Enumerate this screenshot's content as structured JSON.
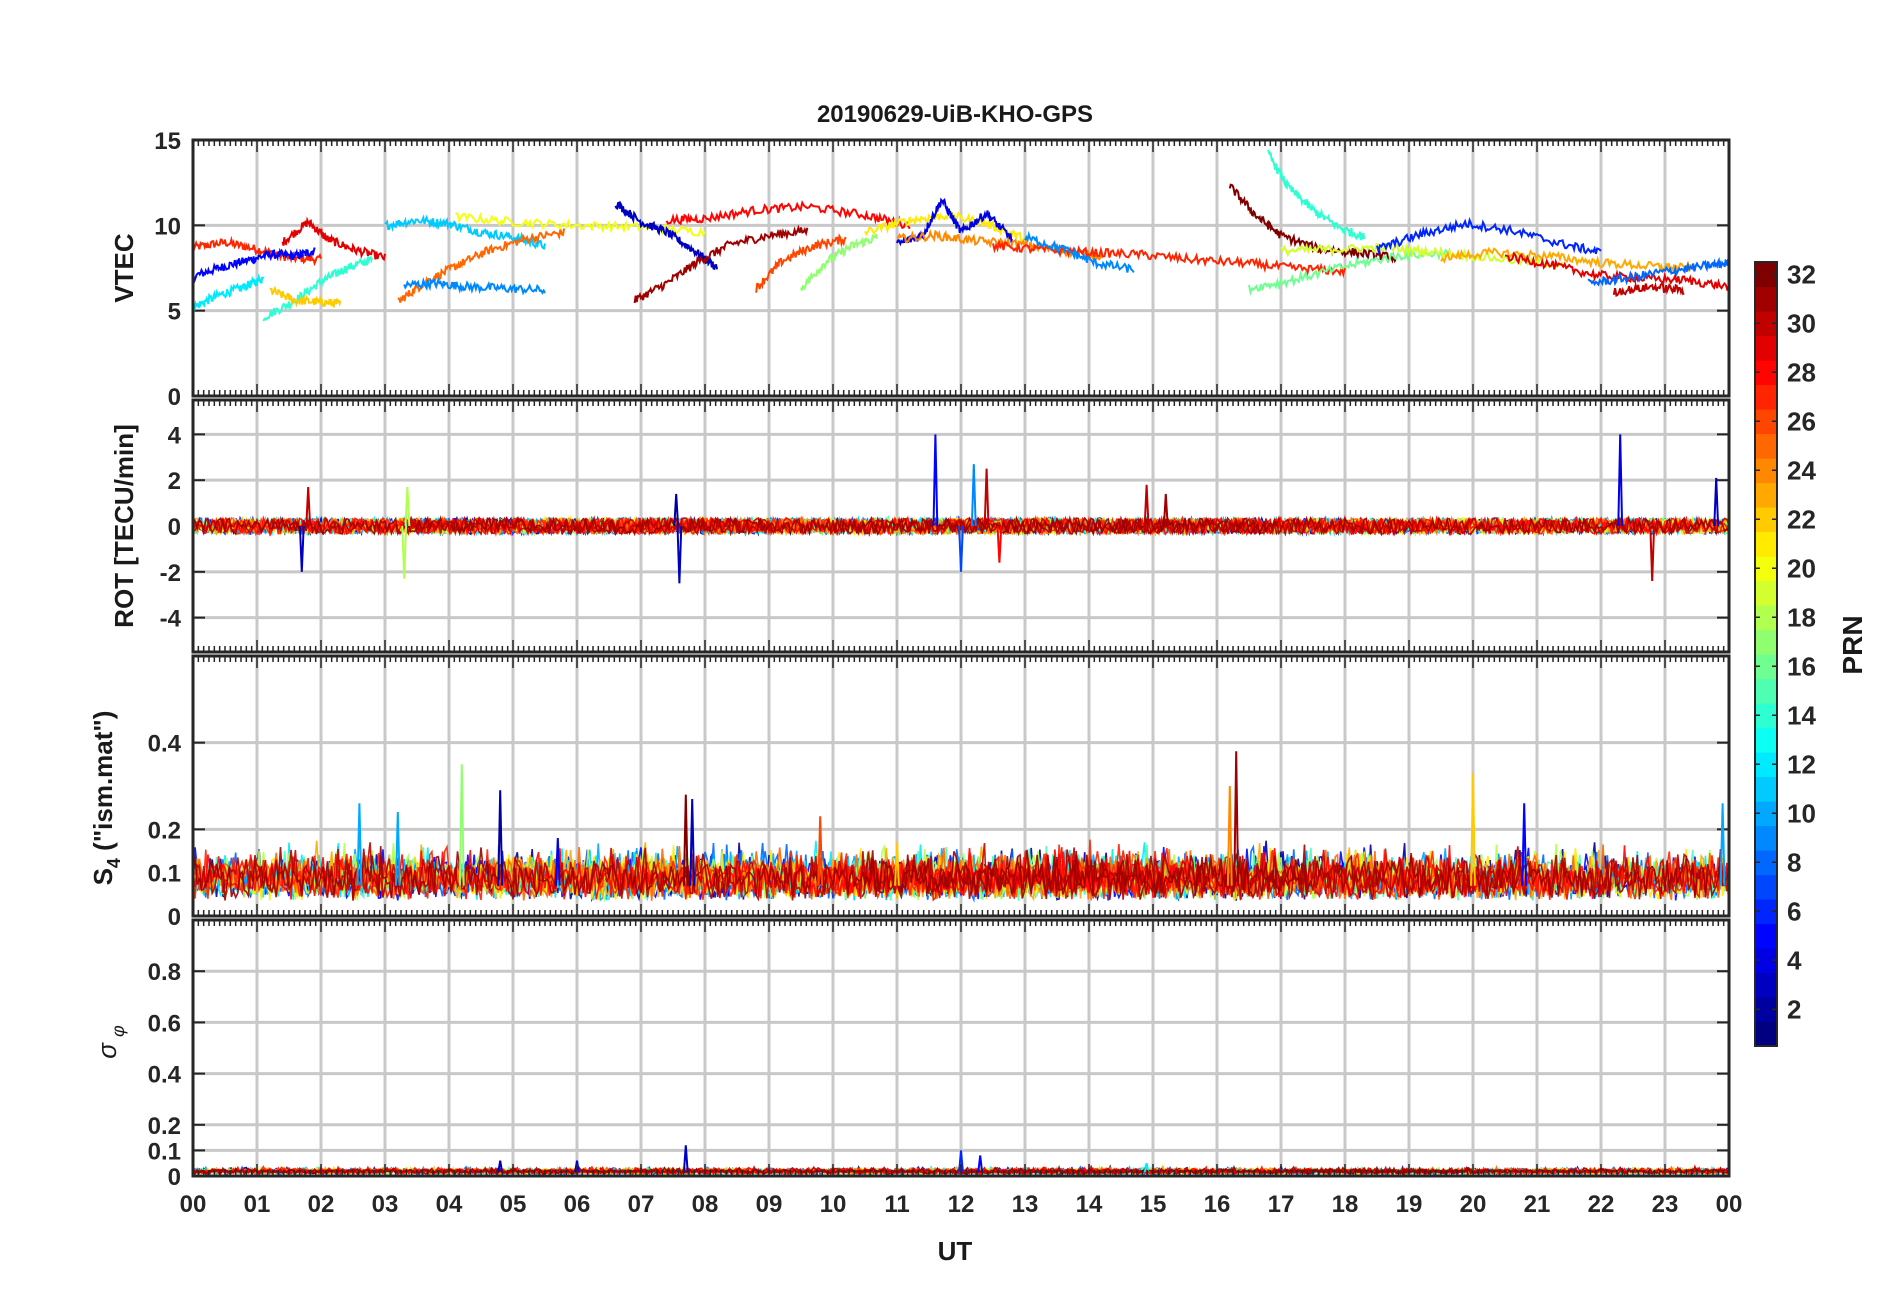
{
  "chart_data": [
    {
      "type": "line",
      "title": "20190629-UiB-KHO-GPS",
      "ylabel": "VTEC",
      "ylim": [
        0,
        15
      ],
      "yticks": [
        0,
        5,
        10,
        15
      ],
      "xlabel": "",
      "xlim": [
        0,
        24
      ],
      "grid": true,
      "series_color_by": "PRN",
      "series": [
        {
          "x": [
            0.0,
            0.5,
            1.0,
            1.5,
            2.0
          ],
          "y": [
            8.7,
            9.0,
            8.6,
            8.1,
            8.0
          ],
          "prn": 27
        },
        {
          "x": [
            0.0,
            0.4,
            0.8,
            1.2,
            1.6,
            1.9
          ],
          "y": [
            7.0,
            7.5,
            7.9,
            8.3,
            8.2,
            8.5
          ],
          "prn": 5
        },
        {
          "x": [
            0.0,
            0.4,
            0.8,
            1.1
          ],
          "y": [
            5.2,
            5.9,
            6.4,
            6.9
          ],
          "prn": 12
        },
        {
          "x": [
            1.1,
            1.6,
            2.0,
            2.4,
            2.8
          ],
          "y": [
            4.6,
            5.6,
            6.7,
            7.5,
            8.0
          ],
          "prn": 14
        },
        {
          "x": [
            1.4,
            1.8,
            2.1,
            2.5,
            3.0
          ],
          "y": [
            9.0,
            10.2,
            9.2,
            8.6,
            8.1
          ],
          "prn": 29
        },
        {
          "x": [
            1.2,
            1.6,
            2.0,
            2.3
          ],
          "y": [
            6.2,
            5.6,
            5.5,
            5.4
          ],
          "prn": 22
        },
        {
          "x": [
            3.0,
            3.5,
            4.0,
            4.5,
            5.0,
            5.5
          ],
          "y": [
            10.0,
            10.3,
            10.1,
            9.6,
            9.3,
            8.8
          ],
          "prn": 11
        },
        {
          "x": [
            3.2,
            3.6,
            4.1,
            4.6,
            5.2,
            5.8
          ],
          "y": [
            5.5,
            6.6,
            7.6,
            8.5,
            9.2,
            9.6
          ],
          "prn": 25
        },
        {
          "x": [
            3.3,
            3.8,
            4.3,
            4.9,
            5.5
          ],
          "y": [
            6.5,
            6.6,
            6.4,
            6.3,
            6.2
          ],
          "prn": 9
        },
        {
          "x": [
            4.1,
            5.0,
            6.0,
            7.0,
            8.0
          ],
          "y": [
            10.5,
            10.2,
            10.0,
            9.9,
            9.6
          ],
          "prn": 20
        },
        {
          "x": [
            6.6,
            7.0,
            7.4,
            7.8,
            8.2
          ],
          "y": [
            11.3,
            10.2,
            9.6,
            8.6,
            7.5
          ],
          "prn": 3
        },
        {
          "x": [
            6.9,
            7.4,
            7.9,
            8.4,
            9.0,
            9.6
          ],
          "y": [
            5.6,
            6.6,
            7.9,
            8.9,
            9.4,
            9.7
          ],
          "prn": 31
        },
        {
          "x": [
            7.4,
            8.0,
            8.8,
            9.6,
            10.5,
            11.2
          ],
          "y": [
            10.3,
            10.4,
            10.9,
            11.1,
            10.6,
            10.0
          ],
          "prn": 28
        },
        {
          "x": [
            8.8,
            9.2,
            9.7,
            10.2
          ],
          "y": [
            6.3,
            7.9,
            8.8,
            9.2
          ],
          "prn": 26
        },
        {
          "x": [
            9.5,
            9.9,
            10.3,
            10.7
          ],
          "y": [
            6.3,
            7.9,
            8.8,
            9.3
          ],
          "prn": 17
        },
        {
          "x": [
            10.5,
            11.2,
            11.8,
            12.4,
            13.0
          ],
          "y": [
            9.6,
            10.3,
            10.6,
            10.1,
            9.2
          ],
          "prn": 21
        },
        {
          "x": [
            11.0,
            11.4,
            11.7,
            12.0,
            12.4,
            12.8
          ],
          "y": [
            8.9,
            9.4,
            11.5,
            9.6,
            10.7,
            9.2
          ],
          "prn": 4
        },
        {
          "x": [
            11.0,
            11.6,
            12.2,
            12.9,
            13.6,
            14.2
          ],
          "y": [
            9.2,
            9.4,
            9.1,
            8.9,
            8.5,
            8.2
          ],
          "prn": 24
        },
        {
          "x": [
            12.5,
            13.2,
            14.0,
            14.8,
            15.6,
            16.4,
            17.2,
            18.0
          ],
          "y": [
            8.8,
            8.6,
            8.4,
            8.3,
            8.0,
            7.8,
            7.5,
            7.3
          ],
          "prn": 27
        },
        {
          "x": [
            13.0,
            13.6,
            14.1,
            14.7
          ],
          "y": [
            9.3,
            8.6,
            7.8,
            7.4
          ],
          "prn": 9
        },
        {
          "x": [
            16.2,
            16.6,
            17.0,
            17.6,
            18.2,
            18.8
          ],
          "y": [
            12.3,
            10.6,
            9.4,
            8.6,
            8.4,
            8.1
          ],
          "prn": 32
        },
        {
          "x": [
            16.8,
            17.1,
            17.5,
            17.9,
            18.3
          ],
          "y": [
            14.2,
            12.3,
            10.9,
            9.9,
            9.3
          ],
          "prn": 14
        },
        {
          "x": [
            16.5,
            17.2,
            18.0,
            18.8,
            19.6
          ],
          "y": [
            6.3,
            6.8,
            7.6,
            8.2,
            8.4
          ],
          "prn": 16
        },
        {
          "x": [
            17.0,
            17.8,
            18.6,
            19.5,
            20.5,
            21.4
          ],
          "y": [
            8.5,
            8.6,
            8.7,
            8.4,
            8.0,
            7.7
          ],
          "prn": 19
        },
        {
          "x": [
            18.5,
            19.2,
            19.9,
            20.6,
            21.4,
            22.0
          ],
          "y": [
            8.6,
            9.5,
            10.1,
            9.7,
            8.9,
            8.4
          ],
          "prn": 6
        },
        {
          "x": [
            19.5,
            20.3,
            21.2,
            22.0,
            22.8,
            23.4
          ],
          "y": [
            8.1,
            8.4,
            8.2,
            7.8,
            7.6,
            7.5
          ],
          "prn": 23
        },
        {
          "x": [
            20.5,
            21.2,
            21.9,
            22.6,
            23.3,
            24.0
          ],
          "y": [
            8.2,
            7.7,
            7.1,
            6.9,
            6.8,
            6.4
          ],
          "prn": 29
        },
        {
          "x": [
            21.8,
            22.4,
            23.0,
            23.6,
            24.0
          ],
          "y": [
            6.6,
            6.9,
            7.3,
            7.6,
            7.8
          ],
          "prn": 8
        },
        {
          "x": [
            22.2,
            22.8,
            23.3
          ],
          "y": [
            6.1,
            6.4,
            6.2
          ],
          "prn": 30
        }
      ]
    },
    {
      "type": "line",
      "ylabel": "ROT [TECU/min]",
      "ylim": [
        -5.5,
        5.5
      ],
      "yticks": [
        -4,
        -2,
        0,
        2,
        4
      ],
      "xlim": [
        0,
        24
      ],
      "grid": true,
      "series_color_by": "PRN",
      "spikes": [
        {
          "x": 1.7,
          "y": -2.0,
          "prn": 3
        },
        {
          "x": 1.8,
          "y": 1.7,
          "prn": 30
        },
        {
          "x": 3.3,
          "y": -2.3,
          "prn": 18
        },
        {
          "x": 3.35,
          "y": 1.7,
          "prn": 18
        },
        {
          "x": 7.6,
          "y": -2.5,
          "prn": 3
        },
        {
          "x": 7.55,
          "y": 1.4,
          "prn": 2
        },
        {
          "x": 11.6,
          "y": 4.0,
          "prn": 5
        },
        {
          "x": 12.0,
          "y": -2.0,
          "prn": 7
        },
        {
          "x": 12.2,
          "y": 2.7,
          "prn": 9
        },
        {
          "x": 12.4,
          "y": 2.5,
          "prn": 30
        },
        {
          "x": 12.6,
          "y": -1.6,
          "prn": 28
        },
        {
          "x": 14.9,
          "y": 1.8,
          "prn": 30
        },
        {
          "x": 15.2,
          "y": 1.4,
          "prn": 31
        },
        {
          "x": 22.3,
          "y": 4.0,
          "prn": 4
        },
        {
          "x": 22.8,
          "y": -2.4,
          "prn": 30
        },
        {
          "x": 23.8,
          "y": 2.1,
          "prn": 3
        }
      ]
    },
    {
      "type": "line",
      "ylabel": "S4 (\"ism.mat\")",
      "ylabel_main": "S",
      "ylabel_sub": "4",
      "ylabel_rest": " (\"ism.mat\")",
      "ylim": [
        0,
        0.6
      ],
      "yticks": [
        0,
        0.1,
        0.2,
        0.4
      ],
      "ytick_labels": [
        "0",
        "0.1",
        "0.2",
        "0.4"
      ],
      "xlim": [
        0,
        24
      ],
      "grid": true,
      "series_color_by": "PRN",
      "spikes": [
        {
          "x": 2.6,
          "y": 0.26,
          "prn": 10
        },
        {
          "x": 3.2,
          "y": 0.24,
          "prn": 10
        },
        {
          "x": 4.2,
          "y": 0.35,
          "prn": 17
        },
        {
          "x": 4.8,
          "y": 0.29,
          "prn": 2
        },
        {
          "x": 5.7,
          "y": 0.18,
          "prn": 4
        },
        {
          "x": 7.7,
          "y": 0.28,
          "prn": 32
        },
        {
          "x": 7.8,
          "y": 0.27,
          "prn": 3
        },
        {
          "x": 9.8,
          "y": 0.23,
          "prn": 26
        },
        {
          "x": 11.0,
          "y": 0.17,
          "prn": 22
        },
        {
          "x": 16.2,
          "y": 0.3,
          "prn": 24
        },
        {
          "x": 16.3,
          "y": 0.38,
          "prn": 31
        },
        {
          "x": 20.0,
          "y": 0.33,
          "prn": 22
        },
        {
          "x": 20.8,
          "y": 0.26,
          "prn": 5
        },
        {
          "x": 23.9,
          "y": 0.26,
          "prn": 10
        }
      ]
    },
    {
      "type": "line",
      "ylabel": "σ φ",
      "ylabel_main": "σ",
      "ylabel_sub": "φ",
      "ylim": [
        0,
        1.0
      ],
      "yticks": [
        0,
        0.1,
        0.2,
        0.4,
        0.6,
        0.8
      ],
      "ytick_labels": [
        "0",
        "0.1",
        "0.2",
        "0.4",
        "0.6",
        "0.8"
      ],
      "xlabel": "UT",
      "xlim": [
        0,
        24
      ],
      "xticks": [
        0,
        1,
        2,
        3,
        4,
        5,
        6,
        7,
        8,
        9,
        10,
        11,
        12,
        13,
        14,
        15,
        16,
        17,
        18,
        19,
        20,
        21,
        22,
        23,
        24
      ],
      "xtick_labels": [
        "00",
        "01",
        "02",
        "03",
        "04",
        "05",
        "06",
        "07",
        "08",
        "09",
        "10",
        "11",
        "12",
        "13",
        "14",
        "15",
        "16",
        "17",
        "18",
        "19",
        "20",
        "21",
        "22",
        "23",
        "00"
      ],
      "grid": true,
      "series_color_by": "PRN",
      "spikes": [
        {
          "x": 4.8,
          "y": 0.06,
          "prn": 3
        },
        {
          "x": 6.0,
          "y": 0.06,
          "prn": 4
        },
        {
          "x": 7.7,
          "y": 0.12,
          "prn": 3
        },
        {
          "x": 12.0,
          "y": 0.1,
          "prn": 6
        },
        {
          "x": 12.3,
          "y": 0.08,
          "prn": 5
        },
        {
          "x": 14.9,
          "y": 0.05,
          "prn": 12
        }
      ]
    }
  ],
  "colorbar": {
    "label": "PRN",
    "range": [
      1,
      32
    ],
    "ticks": [
      "2",
      "4",
      "6",
      "8",
      "10",
      "12",
      "14",
      "16",
      "18",
      "20",
      "22",
      "24",
      "26",
      "28",
      "30",
      "32"
    ],
    "colormap": "jet"
  }
}
